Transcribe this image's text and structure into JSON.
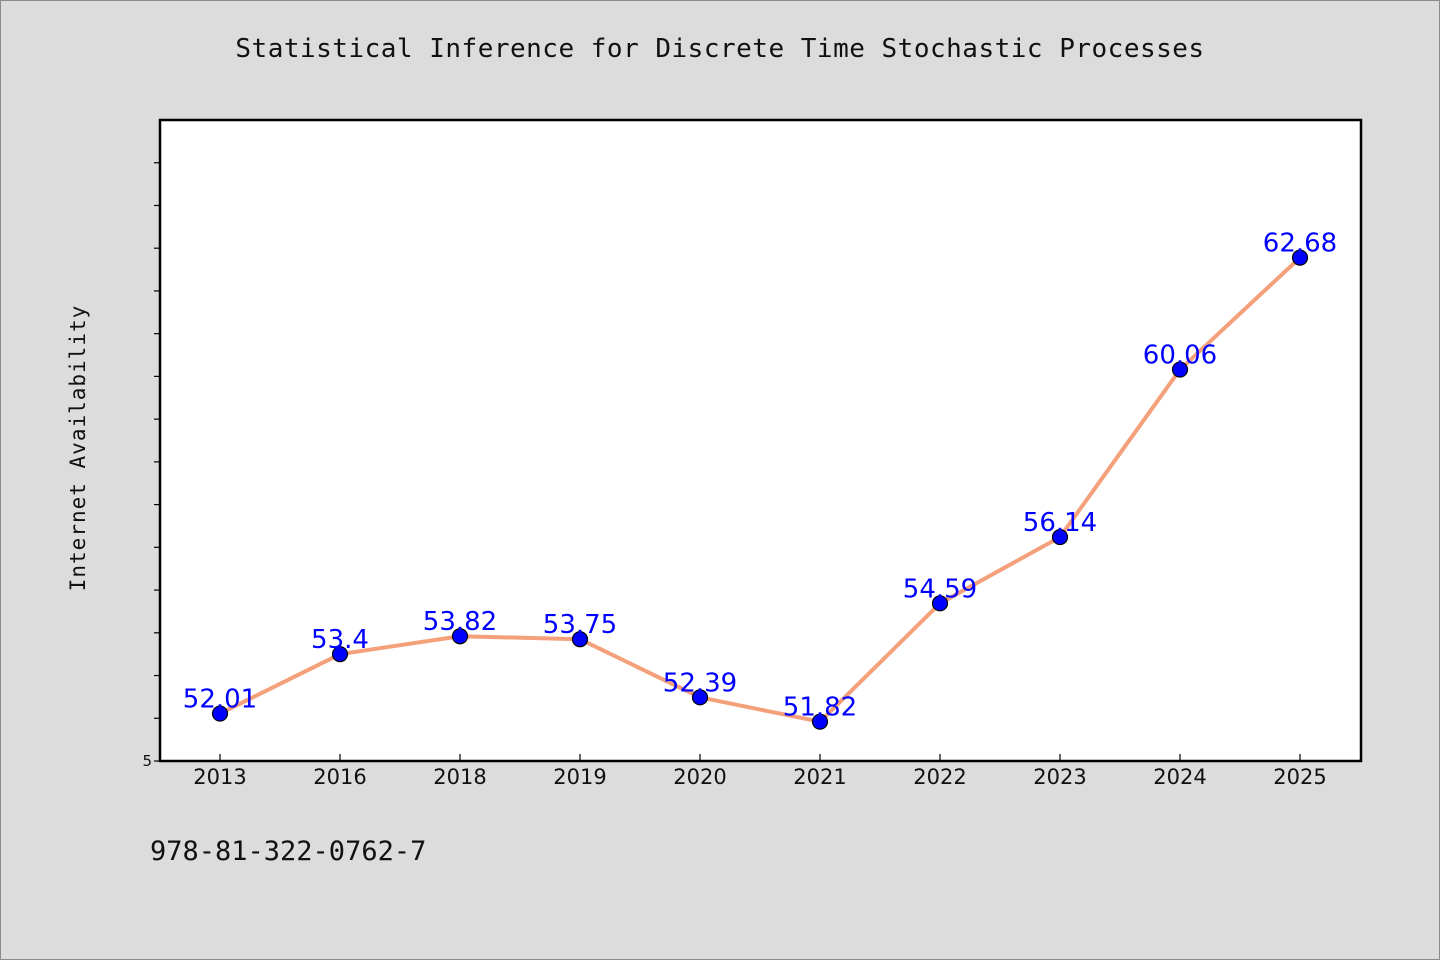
{
  "title": "Statistical Inference for Discrete Time Stochastic Processes",
  "footer_text": "978-81-322-0762-7",
  "chart_data": {
    "type": "line",
    "title": "Statistical Inference for Discrete Time Stochastic Processes",
    "xlabel": "",
    "ylabel": "Internet Availability",
    "categories": [
      "2013",
      "2016",
      "2018",
      "2019",
      "2020",
      "2021",
      "2022",
      "2023",
      "2024",
      "2025"
    ],
    "series": [
      {
        "values": [
          52.01,
          53.4,
          53.82,
          53.75,
          52.39,
          51.82,
          54.59,
          56.14,
          60.06,
          62.68
        ],
        "labels": [
          "52.01",
          "53.4",
          "53.82",
          "53.75",
          "52.39",
          "51.82",
          "54.59",
          "56.14",
          "60.06",
          "62.68"
        ],
        "line_color": "#f4a07a",
        "marker_color": "#0000ff"
      }
    ],
    "ylim": [
      50.9,
      65.9
    ],
    "y_tick_values": [
      50.9,
      51.9,
      52.9,
      53.9,
      54.9,
      55.9,
      56.9,
      57.9,
      58.9,
      59.9,
      60.9,
      61.9,
      62.9,
      63.9,
      64.9
    ],
    "y_tick_labels": [
      "5"
    ],
    "grid": false,
    "legend": "none",
    "plot_background": "#ffffff",
    "page_background": "#dcdcdc",
    "data_label_color": "#0000ff"
  }
}
